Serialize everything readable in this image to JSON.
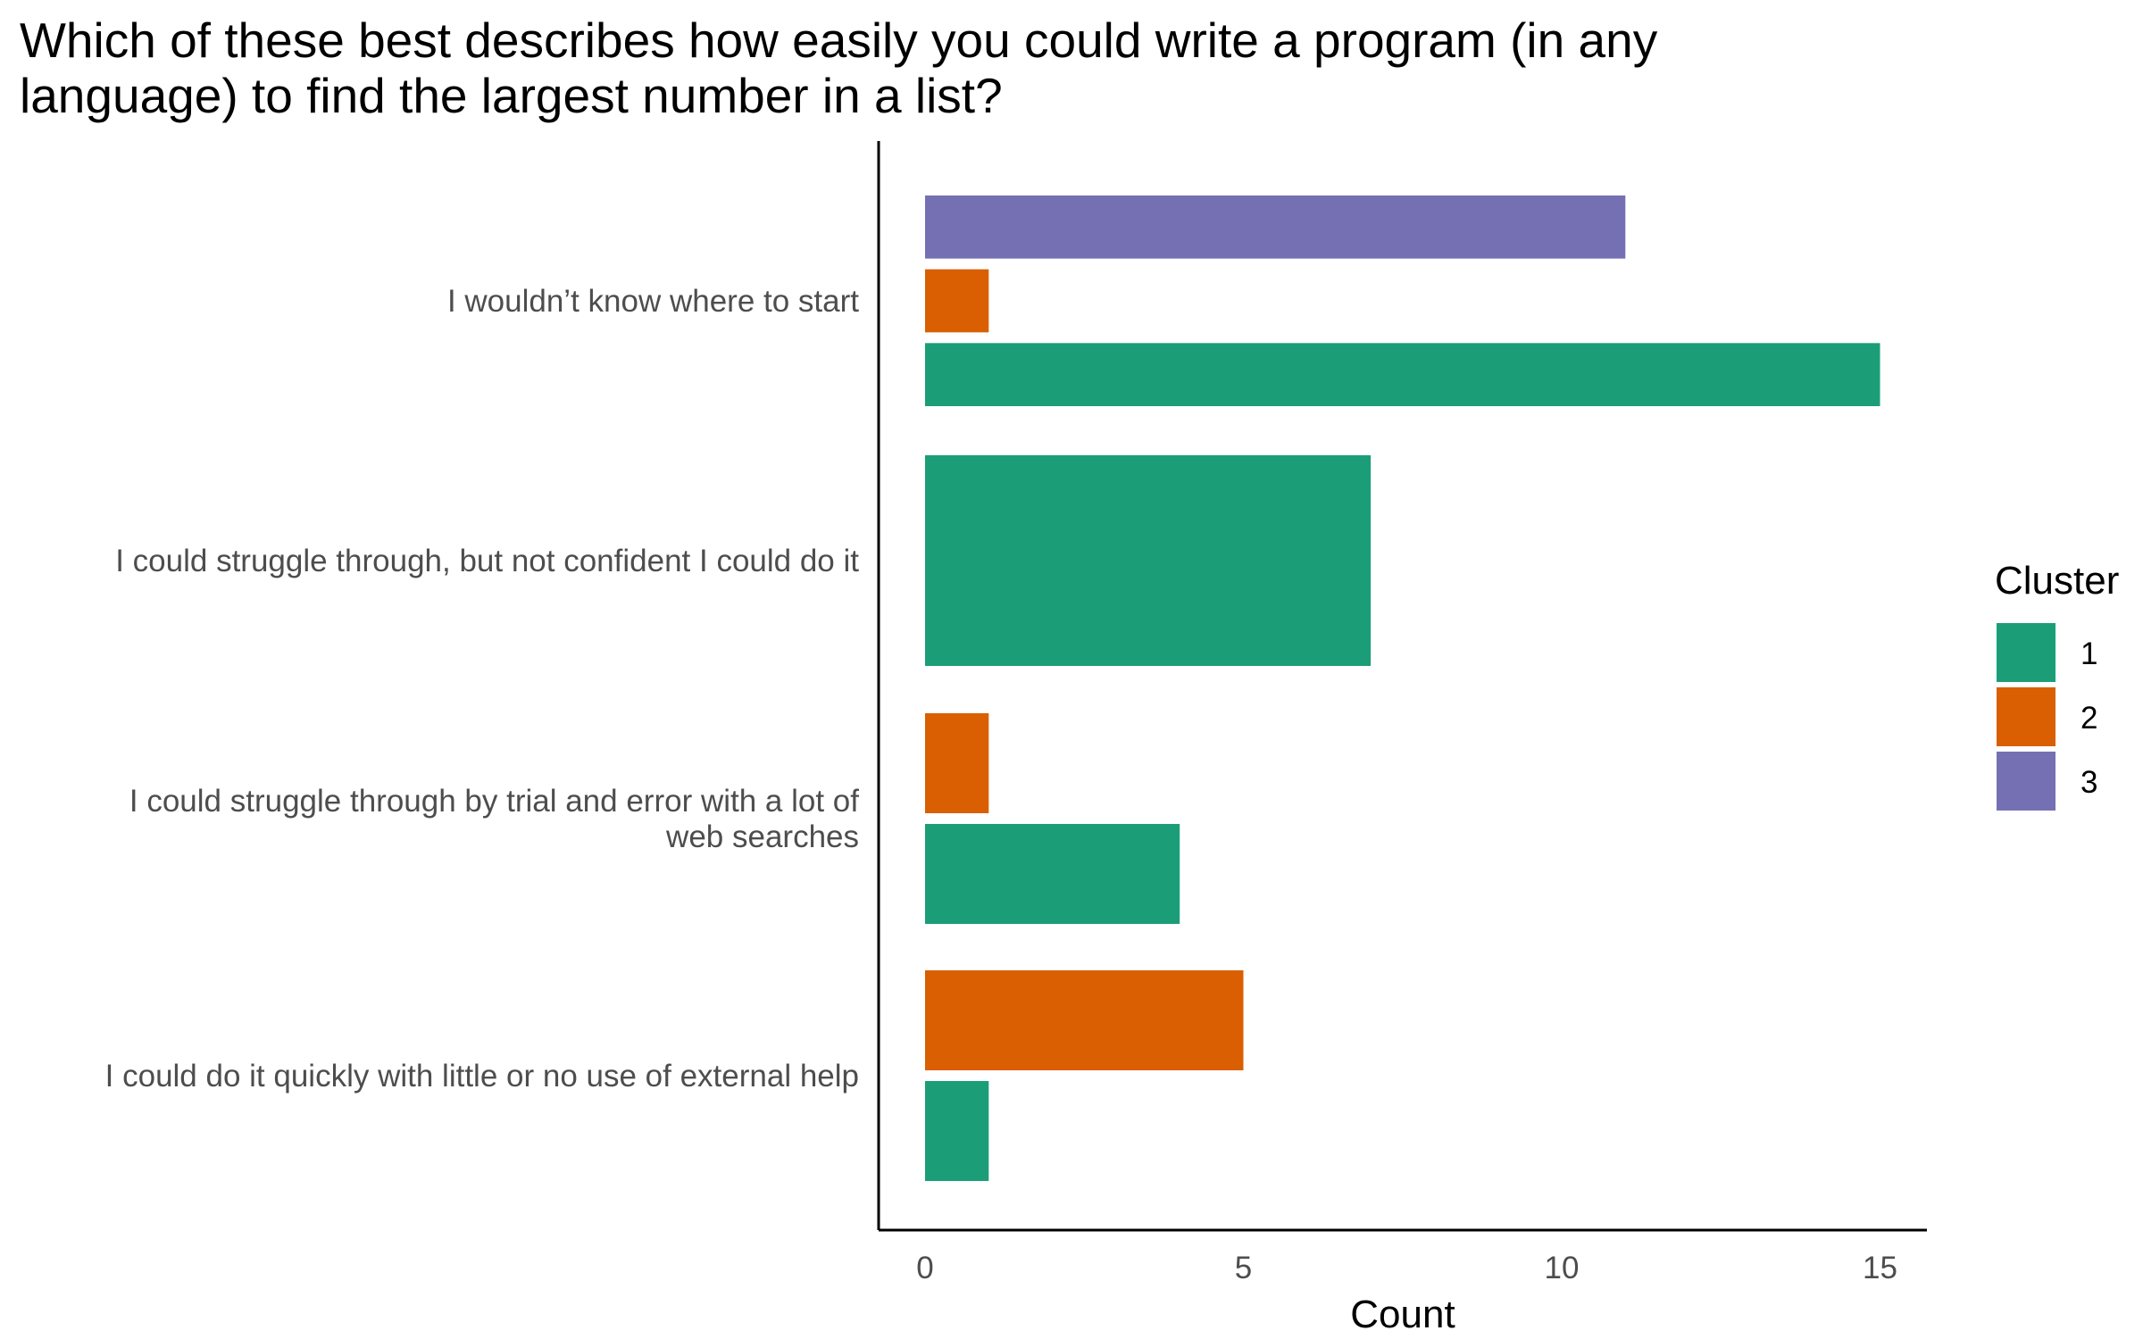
{
  "chart_data": {
    "type": "bar",
    "orientation": "horizontal",
    "title": "Which of these best describes how easily you could write a program (in any language) to find the largest number in a list?",
    "xlabel": "Count",
    "ylabel": "",
    "xlim": [
      0,
      15
    ],
    "xticks": [
      0,
      5,
      10,
      15
    ],
    "grid": false,
    "legend": {
      "title": "Cluster",
      "position": "right"
    },
    "categories": [
      [
        "I wouldn’t know where to start"
      ],
      [
        "I could struggle through, but not confident I could do it"
      ],
      [
        "I could struggle through by trial and error with a lot of",
        "web searches"
      ],
      [
        "I could do it quickly with little or no use of external help"
      ]
    ],
    "series": [
      {
        "name": "1",
        "color": "#1b9e77",
        "values": [
          15,
          7,
          4,
          1
        ]
      },
      {
        "name": "2",
        "color": "#d95f02",
        "values": [
          1,
          null,
          1,
          5
        ]
      },
      {
        "name": "3",
        "color": "#7570b3",
        "values": [
          11,
          null,
          null,
          null
        ]
      }
    ]
  }
}
